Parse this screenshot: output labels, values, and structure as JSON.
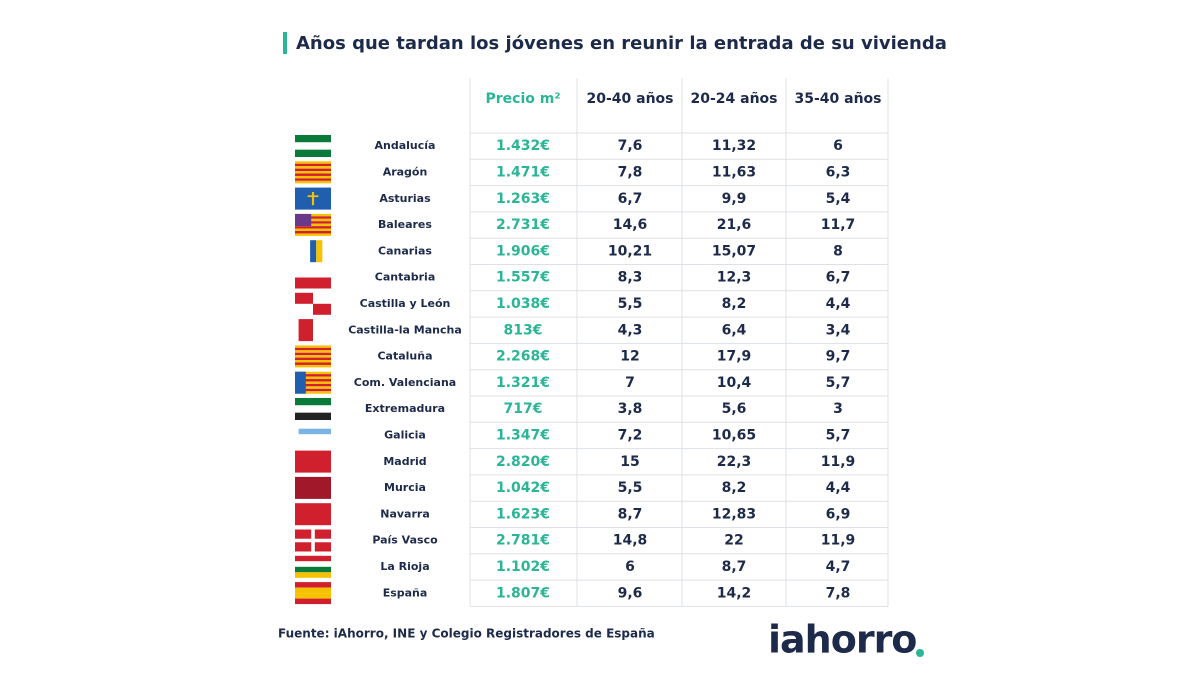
{
  "title": "Años que tardan los jóvenes en reunir la entrada de su vivienda",
  "table": {
    "header": [
      "Precio m²",
      "20-40 años",
      "20-24 años",
      "35-40 años"
    ],
    "rows": [
      [
        "Andalucía",
        "1.432€",
        "7,6",
        "11,32",
        "6"
      ],
      [
        "Aragón",
        "1.471€",
        "7,8",
        "11,63",
        "6,3"
      ],
      [
        "Asturias",
        "1.263€",
        "6,7",
        "9,9",
        "5,4"
      ],
      [
        "Baleares",
        "2.731€",
        "14,6",
        "21,6",
        "11,7"
      ],
      [
        "Canarias",
        "1.906€",
        "10,21",
        "15,07",
        "8"
      ],
      [
        "Cantabria",
        "1.557€",
        "8,3",
        "12,3",
        "6,7"
      ],
      [
        "Castilla y León",
        "1.038€",
        "5,5",
        "8,2",
        "4,4"
      ],
      [
        "Castilla-la Mancha",
        "813€",
        "4,3",
        "6,4",
        "3,4"
      ],
      [
        "Cataluña",
        "2.268€",
        "12",
        "17,9",
        "9,7"
      ],
      [
        "Com. Valenciana",
        "1.321€",
        "7",
        "10,4",
        "5,7"
      ],
      [
        "Extremadura",
        "717€",
        "3,8",
        "5,6",
        "3"
      ],
      [
        "Galicia",
        "1.347€",
        "7,2",
        "10,65",
        "5,7"
      ],
      [
        "Madrid",
        "2.820€",
        "15",
        "22,3",
        "11,9"
      ],
      [
        "Murcia",
        "1.042€",
        "5,5",
        "8,2",
        "4,4"
      ],
      [
        "Navarra",
        "1.623€",
        "8,7",
        "12,83",
        "6,9"
      ],
      [
        "País Vasco",
        "2.781€",
        "14,8",
        "22",
        "11,9"
      ],
      [
        "La Rioja",
        "1.102€",
        "6",
        "8,7",
        "4,7"
      ],
      [
        "España",
        "1.807€",
        "9,6",
        "14,2",
        "7,8"
      ]
    ]
  },
  "source": "Fuente: iAhorro, INE y Colegio Registradores de España",
  "logo": "iahorro"
}
